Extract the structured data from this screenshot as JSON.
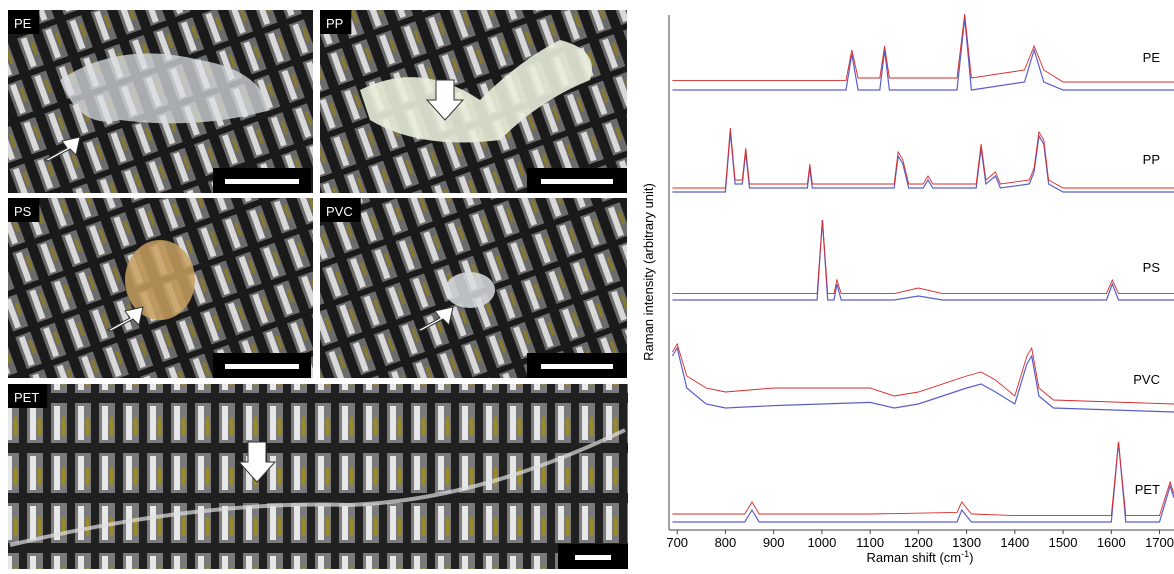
{
  "images": [
    {
      "label": "PE"
    },
    {
      "label": "PP"
    },
    {
      "label": "PS"
    },
    {
      "label": "PVC"
    },
    {
      "label": "PET"
    }
  ],
  "chart_data": {
    "type": "line",
    "xlabel": {
      "text": "Raman shift (cm",
      "sup": "-1",
      "close": ")"
    },
    "ylabel": "Raman intensity (arbitrary unit)",
    "xlim": [
      683,
      1730
    ],
    "xticks": [
      700,
      800,
      900,
      1000,
      1100,
      1200,
      1300,
      1400,
      1500,
      1600,
      1700
    ],
    "reference_color": "#5a5fc8",
    "measured_color": "#d92a2a",
    "series": [
      {
        "name": "PE",
        "x": [
          690,
          1000,
          1050,
          1062,
          1075,
          1120,
          1130,
          1140,
          1280,
          1296,
          1310,
          1420,
          1440,
          1460,
          1500,
          1730
        ],
        "reference": [
          0,
          0,
          0,
          0.45,
          0,
          0,
          0.5,
          0,
          0,
          0.9,
          0,
          0.1,
          0.5,
          0.1,
          0,
          0
        ],
        "values": [
          0.12,
          0.12,
          0.12,
          0.5,
          0.15,
          0.15,
          0.55,
          0.15,
          0.15,
          0.95,
          0.15,
          0.25,
          0.55,
          0.25,
          0.1,
          0.1
        ]
      },
      {
        "name": "PP",
        "x": [
          690,
          800,
          810,
          820,
          835,
          842,
          850,
          970,
          975,
          980,
          1150,
          1158,
          1168,
          1180,
          1210,
          1220,
          1230,
          1320,
          1330,
          1340,
          1360,
          1370,
          1430,
          1440,
          1450,
          1460,
          1470,
          1500,
          1730
        ],
        "reference": [
          0,
          0,
          0.75,
          0.1,
          0.1,
          0.5,
          0.05,
          0.05,
          0.3,
          0.05,
          0.05,
          0.45,
          0.35,
          0.05,
          0.05,
          0.15,
          0.05,
          0.05,
          0.55,
          0.1,
          0.2,
          0.05,
          0.1,
          0.25,
          0.7,
          0.6,
          0.1,
          0,
          0
        ],
        "values": [
          0.05,
          0.05,
          0.8,
          0.15,
          0.15,
          0.55,
          0.1,
          0.1,
          0.35,
          0.1,
          0.1,
          0.5,
          0.4,
          0.1,
          0.1,
          0.2,
          0.1,
          0.1,
          0.6,
          0.15,
          0.25,
          0.1,
          0.15,
          0.3,
          0.75,
          0.65,
          0.15,
          0.05,
          0.05
        ]
      },
      {
        "name": "PS",
        "x": [
          690,
          990,
          1001,
          1012,
          1025,
          1031,
          1040,
          1150,
          1200,
          1250,
          1590,
          1602,
          1615,
          1730
        ],
        "reference": [
          0,
          0,
          1,
          0,
          0,
          0.2,
          0,
          0,
          0.05,
          0,
          0,
          0.2,
          0,
          0
        ],
        "values": [
          0.08,
          0.08,
          1,
          0.08,
          0.08,
          0.25,
          0.08,
          0.08,
          0.15,
          0.08,
          0.08,
          0.25,
          0.08,
          0.08
        ]
      },
      {
        "name": "PVC",
        "x": [
          690,
          700,
          720,
          760,
          800,
          900,
          1000,
          1100,
          1150,
          1200,
          1300,
          1330,
          1360,
          1400,
          1425,
          1435,
          1450,
          1480,
          1730
        ],
        "reference": [
          0.7,
          0.8,
          0.3,
          0.1,
          0.05,
          0.08,
          0.1,
          0.12,
          0.05,
          0.1,
          0.3,
          0.35,
          0.25,
          0.1,
          0.6,
          0.7,
          0.2,
          0.05,
          0
        ],
        "values": [
          0.75,
          0.85,
          0.45,
          0.3,
          0.25,
          0.3,
          0.3,
          0.3,
          0.2,
          0.25,
          0.45,
          0.5,
          0.4,
          0.2,
          0.7,
          0.8,
          0.3,
          0.15,
          0.1
        ]
      },
      {
        "name": "PET",
        "x": [
          690,
          840,
          855,
          870,
          1000,
          1100,
          1280,
          1290,
          1310,
          1400,
          1600,
          1615,
          1630,
          1700,
          1722,
          1730
        ],
        "reference": [
          0,
          0,
          0.15,
          0,
          0,
          0,
          0,
          0.15,
          0,
          0,
          0,
          1,
          0,
          0,
          0.45,
          0.3
        ],
        "values": [
          0.1,
          0.1,
          0.25,
          0.1,
          0.1,
          0.1,
          0.12,
          0.25,
          0.1,
          0.08,
          0.08,
          1,
          0.08,
          0.08,
          0.5,
          0.35
        ]
      }
    ]
  }
}
